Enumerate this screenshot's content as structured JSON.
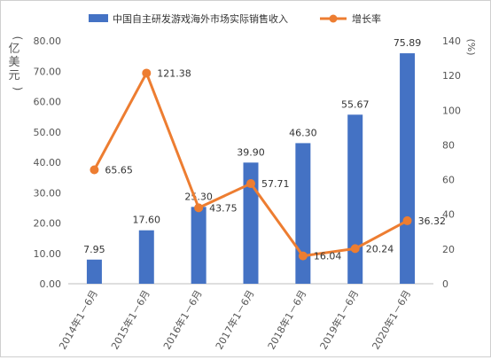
{
  "chart_data": {
    "type": "bar",
    "categories": [
      "2014年1－6月",
      "2015年1－6月",
      "2016年1－6月",
      "2017年1－6月",
      "2018年1－6月",
      "2019年1－6月",
      "2020年1－6月"
    ],
    "series": [
      {
        "name": "中国自主研发游戏海外市场实际销售收入",
        "type": "bar",
        "axis": "left",
        "color": "#4472C4",
        "values": [
          7.95,
          17.6,
          25.3,
          39.9,
          46.3,
          55.67,
          75.89
        ],
        "labels": [
          "7.95",
          "17.60",
          "25.30",
          "39.90",
          "46.30",
          "55.67",
          "75.89"
        ]
      },
      {
        "name": "增长率",
        "type": "line",
        "axis": "right",
        "color": "#ED7D31",
        "values": [
          65.65,
          121.38,
          43.75,
          57.71,
          16.04,
          20.24,
          36.32
        ],
        "labels": [
          "65.65",
          "121.38",
          "43.75",
          "57.71",
          "16.04",
          "20.24",
          "36.32"
        ]
      }
    ],
    "y_left": {
      "label": "亿美元",
      "lim": [
        0,
        80
      ],
      "ticks": [
        "0.00",
        "10.00",
        "20.00",
        "30.00",
        "40.00",
        "50.00",
        "60.00",
        "70.00",
        "80.00"
      ]
    },
    "y_right": {
      "label": "%",
      "lim": [
        0,
        140
      ],
      "ticks": [
        "0",
        "20",
        "40",
        "60",
        "80",
        "100",
        "120",
        "140"
      ]
    },
    "legend_position": "top",
    "grid": false
  }
}
